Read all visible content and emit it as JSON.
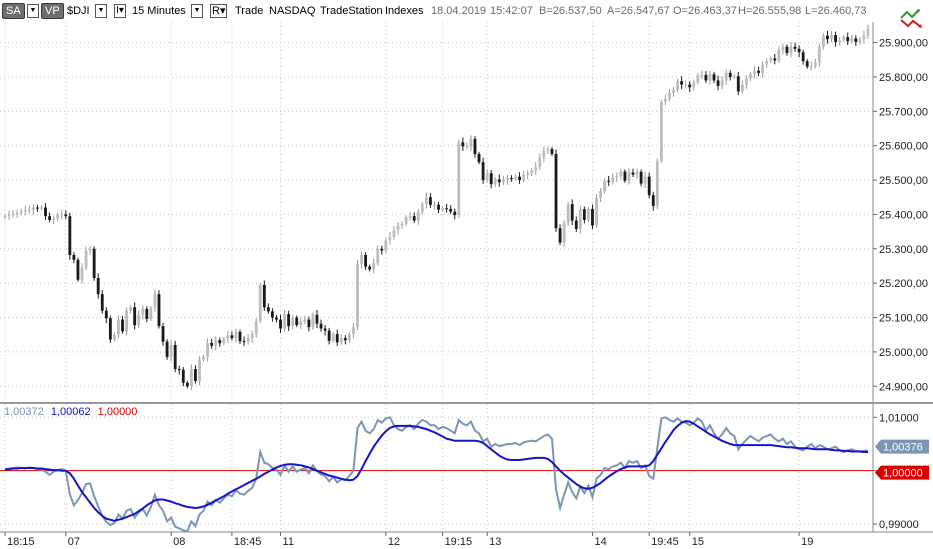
{
  "toolbar": {
    "sa_label": "SA",
    "vp_label": "VP",
    "symbol": "$DJI",
    "interval": "15 Minutes",
    "r_label": "R",
    "trade": "Trade",
    "exchange": "NASDAQ",
    "source": "TradeStation",
    "category": "Indexes",
    "date": "18.04.2019",
    "time": "15:42:07",
    "bid": "B=26.537,50",
    "ask": "A=26.547,67",
    "open": "O=26.463,37",
    "high": "H=26.555,98",
    "low": "L=26.460,73"
  },
  "indicator_legend": {
    "v1": "1,00372",
    "v2": "1,00062",
    "v3": "1,00000"
  },
  "colors": {
    "up_candle": "#bdbdbd",
    "down_candle": "#1a1a1a",
    "grid": "#c8c8c8",
    "line_fast": "#7a96b4",
    "line_slow": "#1414c8",
    "baseline": "#dd0000",
    "tag_fast": "#7a96b4",
    "tag_baseline": "#dd0000"
  },
  "chart_data": [
    {
      "type": "candlestick",
      "ylim": [
        24860,
        25960
      ],
      "yticks": [
        "24.900,00",
        "25.000,00",
        "25.100,00",
        "25.200,00",
        "25.300,00",
        "25.400,00",
        "25.500,00",
        "25.600,00",
        "25.700,00",
        "25.800,00",
        "25.900,00"
      ],
      "yticks_values": [
        24900,
        25000,
        25100,
        25200,
        25300,
        25400,
        25500,
        25600,
        25700,
        25800,
        25900
      ],
      "closes": [
        25395,
        25398,
        25402,
        25405,
        25410,
        25412,
        25414,
        25420,
        25418,
        25420,
        25395,
        25384,
        25388,
        25398,
        25400,
        25395,
        25282,
        25268,
        25210,
        25245,
        25295,
        25300,
        25215,
        25168,
        25120,
        25098,
        25036,
        25050,
        25094,
        25060,
        25120,
        25130,
        25078,
        25108,
        25125,
        25096,
        25128,
        25168,
        25075,
        25030,
        24985,
        25020,
        24950,
        24948,
        24910,
        24900,
        24950,
        24915,
        24978,
        24985,
        25026,
        25018,
        25034,
        25025,
        25038,
        25048,
        25040,
        25058,
        25031,
        25030,
        25040,
        25052,
        25090,
        25195,
        25130,
        25118,
        25100,
        25094,
        25068,
        25110,
        25075,
        25100,
        25078,
        25088,
        25094,
        25072,
        25108,
        25082,
        25068,
        25062,
        25032,
        25052,
        25028,
        25040,
        25034,
        25052,
        25072,
        25256,
        25282,
        25248,
        25240,
        25258,
        25300,
        25295,
        25325,
        25335,
        25355,
        25368,
        25372,
        25392,
        25395,
        25382,
        25408,
        25430,
        25450,
        25428,
        25428,
        25414,
        25418,
        25416,
        25408,
        25398,
        25610,
        25598,
        25598,
        25620,
        25576,
        25552,
        25500,
        25520,
        25488,
        25502,
        25494,
        25500,
        25506,
        25505,
        25510,
        25500,
        25515,
        25520,
        25528,
        25538,
        25566,
        25586,
        25590,
        25576,
        25360,
        25318,
        25374,
        25430,
        25382,
        25358,
        25415,
        25384,
        25416,
        25368,
        25448,
        25468,
        25498,
        25496,
        25508,
        25512,
        25525,
        25498,
        25522,
        25516,
        25524,
        25490,
        25510,
        25456,
        25425,
        25555,
        25728,
        25736,
        25754,
        25762,
        25788,
        25778,
        25778,
        25770,
        25784,
        25805,
        25806,
        25790,
        25808,
        25790,
        25774,
        25790,
        25812,
        25800,
        25802,
        25758,
        25778,
        25796,
        25808,
        25818,
        25812,
        25836,
        25846,
        25854,
        25848,
        25878,
        25888,
        25870,
        25888,
        25882,
        25872,
        25846,
        25830,
        25832,
        25842,
        25888,
        25920,
        25910,
        25922,
        25902,
        25908,
        25916,
        25904,
        25912,
        25902,
        25910,
        25920,
        25940
      ]
    },
    {
      "type": "line",
      "ylim": [
        0.9885,
        1.0125
      ],
      "yticks": [
        "0,99000",
        "1,00000",
        "1,01000"
      ],
      "yticks_values": [
        0.99,
        1.0,
        1.01
      ],
      "series": [
        {
          "name": "1,00372",
          "values": [
            1.0003,
            1.0004,
            1.0005,
            1.0006,
            1.0005,
            1.0004,
            1.0006,
            1.0005,
            1.0003,
            1.0002,
            0.9998,
            0.9992,
            0.9998,
            1.0001,
            1.0003,
            1.0,
            0.9956,
            0.9935,
            0.9945,
            0.9958,
            0.9975,
            0.9976,
            0.9952,
            0.9933,
            0.9915,
            0.9904,
            0.9898,
            0.9902,
            0.9918,
            0.991,
            0.9925,
            0.9928,
            0.9912,
            0.9922,
            0.9928,
            0.9916,
            0.9932,
            0.9955,
            0.9935,
            0.9925,
            0.9905,
            0.9912,
            0.9895,
            0.9892,
            0.9888,
            0.9886,
            0.9905,
            0.9896,
            0.9918,
            0.9925,
            0.9942,
            0.9935,
            0.9945,
            0.994,
            0.9948,
            0.9955,
            0.9952,
            0.9963,
            0.9957,
            0.9955,
            0.9962,
            0.9968,
            0.9985,
            1.0035,
            1.0015,
            1.0012,
            1.0005,
            1.0002,
            0.9992,
            1.001,
            0.9998,
            1.0008,
            0.9998,
            1.0002,
            1.0005,
            0.9995,
            1.001,
            0.9999,
            0.9993,
            0.999,
            0.998,
            0.9988,
            0.9978,
            0.9984,
            0.9982,
            0.999,
            1.0,
            1.008,
            1.0092,
            1.0075,
            1.007,
            1.0078,
            1.0095,
            1.009,
            1.0098,
            1.01,
            1.0085,
            1.0078,
            1.0075,
            1.0082,
            1.0085,
            1.0078,
            1.0088,
            1.0095,
            1.0092,
            1.0085,
            1.0085,
            1.0078,
            1.0082,
            1.008,
            1.0075,
            1.007,
            1.0095,
            1.0088,
            1.0085,
            1.0092,
            1.0075,
            1.007,
            1.0055,
            1.006,
            1.0045,
            1.005,
            1.0046,
            1.0048,
            1.005,
            1.005,
            1.0052,
            1.0048,
            1.0053,
            1.0055,
            1.0056,
            1.0055,
            1.006,
            1.0065,
            1.0068,
            1.006,
            0.9965,
            0.993,
            0.9955,
            0.9978,
            0.996,
            0.9948,
            0.997,
            0.9958,
            0.9972,
            0.995,
            0.9985,
            0.9992,
            1.0005,
            1.0003,
            1.0008,
            1.001,
            1.0015,
            1.0005,
            1.0018,
            1.0015,
            1.0018,
            1.0005,
            1.001,
            0.999,
            0.9985,
            1.0042,
            1.0098,
            1.01,
            1.0095,
            1.0092,
            1.0098,
            1.0092,
            1.009,
            1.0085,
            1.009,
            1.0098,
            1.0092,
            1.0075,
            1.0085,
            1.007,
            1.006,
            1.0068,
            1.008,
            1.007,
            1.0065,
            1.004,
            1.005,
            1.0058,
            1.0065,
            1.006,
            1.0055,
            1.0062,
            1.0065,
            1.0068,
            1.006,
            1.0055,
            1.006,
            1.005,
            1.0055,
            1.0045,
            1.004,
            1.0038,
            1.0045,
            1.005,
            1.0042,
            1.0048,
            1.0045,
            1.004,
            1.0042,
            1.0045,
            1.0038,
            1.0035,
            1.0038,
            1.004,
            1.0037,
            1.0036,
            1.0037,
            1.0038
          ]
        },
        {
          "name": "1,00062",
          "values": [
            1.0002,
            1.0003,
            1.0004,
            1.0004,
            1.0005,
            1.0005,
            1.0005,
            1.0005,
            1.0004,
            1.0004,
            1.0003,
            1.0002,
            1.0001,
            1.0001,
            1.0,
            1.0,
            0.9995,
            0.9985,
            0.9972,
            0.996,
            0.995,
            0.994,
            0.993,
            0.9922,
            0.9915,
            0.991,
            0.9908,
            0.9906,
            0.9908,
            0.991,
            0.9913,
            0.9916,
            0.9919,
            0.9924,
            0.9929,
            0.9935,
            0.994,
            0.9944,
            0.9946,
            0.9946,
            0.9944,
            0.9942,
            0.9939,
            0.9937,
            0.9934,
            0.9932,
            0.9931,
            0.993,
            0.9931,
            0.9933,
            0.9936,
            0.994,
            0.9944,
            0.9948,
            0.9952,
            0.9957,
            0.9961,
            0.9965,
            0.9969,
            0.9973,
            0.9977,
            0.9981,
            0.9985,
            0.9989,
            0.9994,
            0.9998,
            1.0002,
            1.0006,
            1.0009,
            1.0011,
            1.0012,
            1.0012,
            1.0011,
            1.001,
            1.0008,
            1.0006,
            1.0003,
            1.0,
            0.9997,
            0.9994,
            0.9991,
            0.9989,
            0.9987,
            0.9985,
            0.9983,
            0.9982,
            0.9983,
            0.999,
            1.0003,
            1.0018,
            1.0032,
            1.0045,
            1.0056,
            1.0066,
            1.0074,
            1.008,
            1.0083,
            1.0084,
            1.0084,
            1.0084,
            1.0084,
            1.0083,
            1.0082,
            1.008,
            1.0078,
            1.0075,
            1.0072,
            1.0068,
            1.0064,
            1.006,
            1.0058,
            1.0056,
            1.0056,
            1.0056,
            1.0056,
            1.0056,
            1.0056,
            1.0055,
            1.0052,
            1.0046,
            1.004,
            1.0034,
            1.0028,
            1.0024,
            1.0021,
            1.002,
            1.002,
            1.002,
            1.0021,
            1.0022,
            1.0023,
            1.0024,
            1.0024,
            1.0024,
            1.0022,
            1.0016,
            1.0008,
            1.0,
            0.9993,
            0.9987,
            0.9981,
            0.9975,
            0.997,
            0.9967,
            0.9966,
            0.9968,
            0.9972,
            0.9977,
            0.9983,
            0.9989,
            0.9994,
            0.9999,
            1.0003,
            1.0006,
            1.0008,
            1.0008,
            1.0008,
            1.0008,
            1.0008,
            1.001,
            1.0018,
            1.003,
            1.0042,
            1.0054,
            1.0065,
            1.0076,
            1.0084,
            1.009,
            1.0093,
            1.0092,
            1.0088,
            1.0083,
            1.0078,
            1.0073,
            1.0068,
            1.0064,
            1.006,
            1.0056,
            1.0053,
            1.005,
            1.0048,
            1.0048,
            1.0048,
            1.0048,
            1.0048,
            1.0048,
            1.0048,
            1.0048,
            1.0048,
            1.0048,
            1.0047,
            1.0046,
            1.0045,
            1.0044,
            1.0044,
            1.0043,
            1.0042,
            1.0042,
            1.0042,
            1.0041,
            1.004,
            1.004,
            1.004,
            1.004,
            1.0039,
            1.0038,
            1.0038,
            1.0037,
            1.0037,
            1.0036,
            1.0036,
            1.0036,
            1.0035,
            1.0035
          ]
        },
        {
          "name": "1,00000",
          "values": [
            1.0,
            1.0
          ]
        }
      ],
      "last_value_tags": [
        "1,00376",
        "1,00000"
      ]
    }
  ],
  "x_axis": {
    "labels": [
      "18:15",
      "07",
      "08",
      "18:45",
      "11",
      "12",
      "19:15",
      "13",
      "14",
      "19:45",
      "15",
      "19"
    ],
    "label_bars": [
      0,
      15,
      41,
      56,
      68,
      94,
      108,
      119,
      145,
      159,
      169,
      196
    ]
  }
}
